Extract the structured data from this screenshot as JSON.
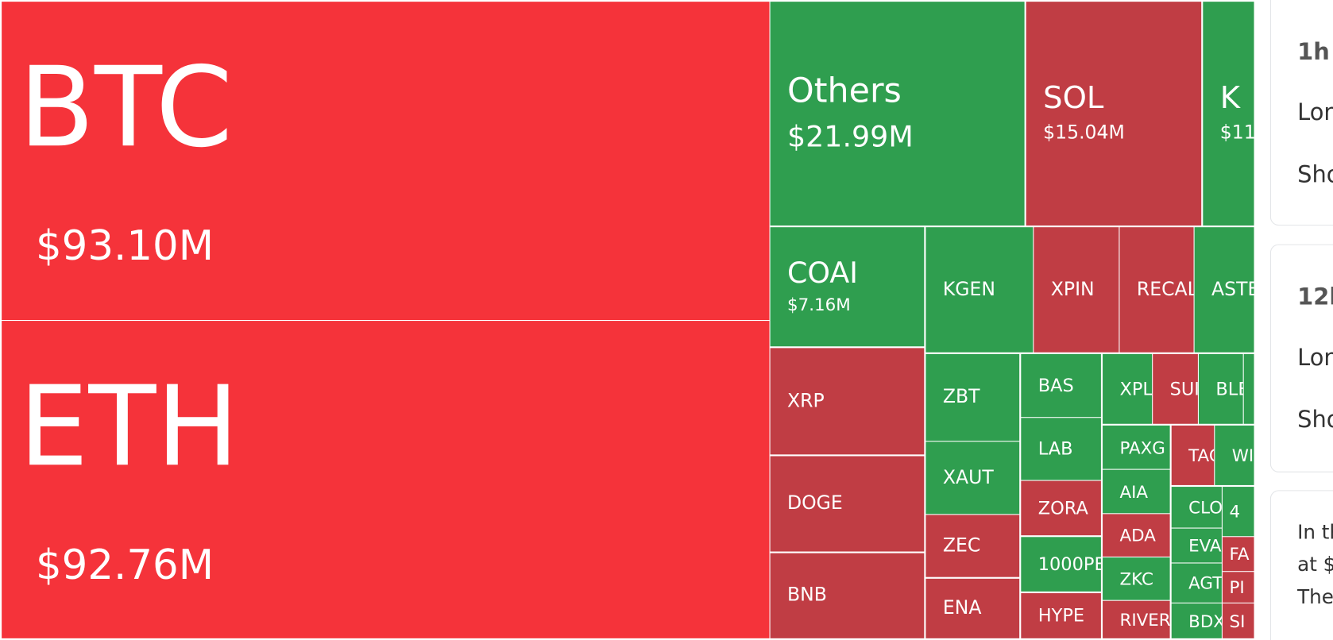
{
  "tiles": [
    {
      "label": "BTC",
      "value": "$93.10M",
      "color": "#f5333a"
    },
    {
      "label": "ETH",
      "value": "$92.76M",
      "color": "#f5333a"
    },
    {
      "label": "Others",
      "value": "$21.99M",
      "color": "#2f9e4f"
    },
    {
      "label": "SOL",
      "value": "$15.04M",
      "color": "#c03d44"
    },
    {
      "label": "K",
      "value": "$11.",
      "color": "#2f9e4f"
    },
    {
      "label": "COAI",
      "value": "$7.16M",
      "color": "#2f9e4f"
    },
    {
      "label": "KGEN",
      "color": "#2f9e4f"
    },
    {
      "label": "XPIN",
      "color": "#c03d44"
    },
    {
      "label": "RECAL",
      "color": "#c03d44"
    },
    {
      "label": "ASTE",
      "color": "#2f9e4f"
    },
    {
      "label": "XRP",
      "color": "#c03d44"
    },
    {
      "label": "DOGE",
      "color": "#c03d44"
    },
    {
      "label": "BNB",
      "color": "#c03d44"
    },
    {
      "label": "ZBT",
      "color": "#2f9e4f"
    },
    {
      "label": "XAUT",
      "color": "#2f9e4f"
    },
    {
      "label": "ZEC",
      "color": "#c03d44"
    },
    {
      "label": "ENA",
      "color": "#c03d44"
    },
    {
      "label": "BAS",
      "color": "#2f9e4f"
    },
    {
      "label": "LAB",
      "color": "#2f9e4f"
    },
    {
      "label": "ZORA",
      "color": "#c03d44"
    },
    {
      "label": "1000PE",
      "color": "#2f9e4f"
    },
    {
      "label": "HYPE",
      "color": "#c03d44"
    },
    {
      "label": "XPL",
      "color": "#2f9e4f"
    },
    {
      "label": "SUI",
      "color": "#c03d44"
    },
    {
      "label": "BLE",
      "color": "#2f9e4f"
    },
    {
      "color": "#2f9e4f"
    },
    {
      "label": "PAXG",
      "color": "#2f9e4f"
    },
    {
      "label": "AIA",
      "color": "#2f9e4f"
    },
    {
      "label": "ADA",
      "color": "#c03d44"
    },
    {
      "label": "ZKC",
      "color": "#2f9e4f"
    },
    {
      "label": "RIVER",
      "color": "#c03d44"
    },
    {
      "label": "TAC",
      "color": "#c03d44"
    },
    {
      "label": "WI",
      "color": "#2f9e4f"
    },
    {
      "label": "CLO",
      "color": "#2f9e4f"
    },
    {
      "label": "4",
      "color": "#2f9e4f"
    },
    {
      "label": "EVA",
      "color": "#2f9e4f"
    },
    {
      "label": "FA",
      "color": "#c03d44"
    },
    {
      "label": "AGT",
      "color": "#2f9e4f"
    },
    {
      "label": "PI",
      "color": "#c03d44"
    },
    {
      "label": "BDX",
      "color": "#2f9e4f"
    },
    {
      "label": "SI",
      "color": "#c03d44"
    }
  ],
  "panel": {
    "cards": [
      {
        "title": "1h",
        "lines": [
          "Lon",
          "Sho"
        ]
      },
      {
        "title": "12h",
        "lines": [
          "Lon",
          "Sho"
        ]
      },
      {
        "lines": [
          "In th",
          "at $",
          "The"
        ]
      }
    ]
  }
}
